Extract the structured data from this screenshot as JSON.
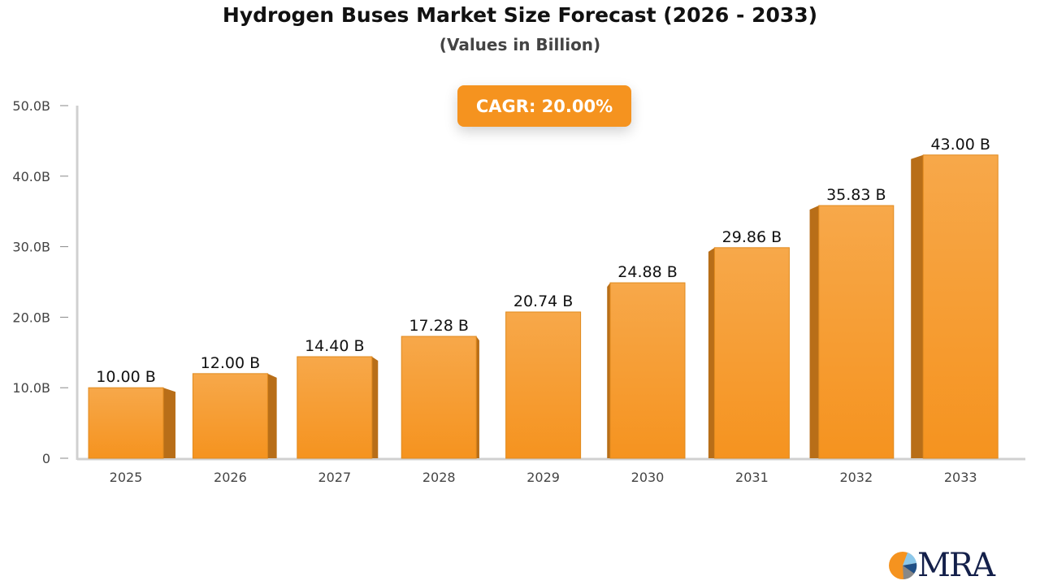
{
  "chart_data": {
    "type": "bar",
    "title": "Hydrogen Buses Market Size Forecast (2026 - 2033)",
    "subtitle": "(Values in Billion)",
    "annotation": "CAGR: 20.00%",
    "categories": [
      "2025",
      "2026",
      "2027",
      "2028",
      "2029",
      "2030",
      "2031",
      "2032",
      "2033"
    ],
    "values": [
      10.0,
      12.0,
      14.4,
      17.28,
      20.74,
      24.88,
      29.86,
      35.83,
      43.0
    ],
    "data_labels": [
      "10.00 B",
      "12.00 B",
      "14.40 B",
      "17.28 B",
      "20.74 B",
      "24.88 B",
      "29.86 B",
      "35.83 B",
      "43.00 B"
    ],
    "ylim": [
      0,
      50
    ],
    "yticks": [
      0,
      10,
      20,
      30,
      40,
      50
    ],
    "ytick_labels": [
      "0",
      "10.0B",
      "20.0B",
      "30.0B",
      "40.0B",
      "50.0B"
    ],
    "xlabel": "",
    "ylabel": "",
    "grid": false,
    "colors": {
      "bar_top": "#f7a84a",
      "bar_bottom": "#f5931f",
      "bar_side": "#b86e18",
      "axis": "#d0d0d0"
    }
  },
  "logo": {
    "text": "MRA"
  }
}
